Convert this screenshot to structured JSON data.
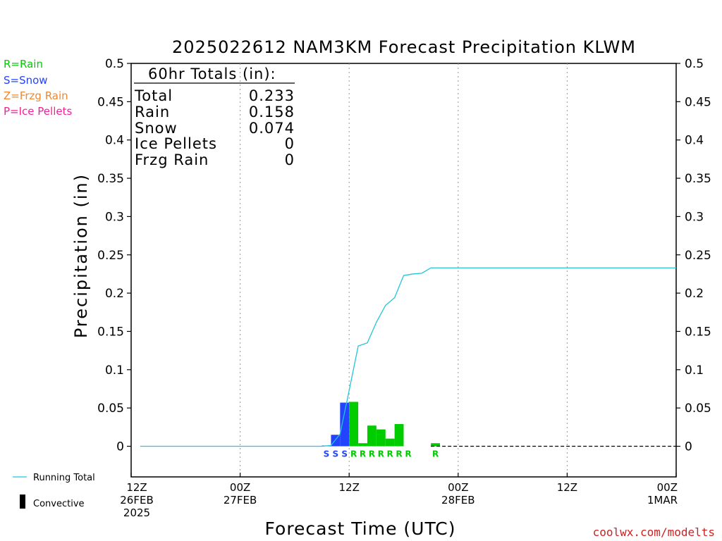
{
  "chart_data": {
    "type": "bar",
    "title": "2025022612 NAM3KM Forecast Precipitation KLWM",
    "xlabel": "Forecast Time (UTC)",
    "ylabel": "Precipitation (in)",
    "ylim": [
      -0.04,
      0.5
    ],
    "yticks": [
      "0.5",
      "0.45",
      "0.4",
      "0.35",
      "0.3",
      "0.25",
      "0.2",
      "0.15",
      "0.1",
      "0.05",
      "0"
    ],
    "ytick_values": [
      0.5,
      0.45,
      0.4,
      0.35,
      0.3,
      0.25,
      0.2,
      0.15,
      0.1,
      0.05,
      0
    ],
    "xlim_hours": [
      0,
      60
    ],
    "xticks": [
      {
        "hour": 0,
        "lines": [
          "12Z",
          "26FEB",
          "2025"
        ]
      },
      {
        "hour": 12,
        "lines": [
          "00Z",
          "27FEB"
        ]
      },
      {
        "hour": 24,
        "lines": [
          "12Z",
          ""
        ]
      },
      {
        "hour": 36,
        "lines": [
          "00Z",
          "28FEB"
        ]
      },
      {
        "hour": 48,
        "lines": [
          "12Z",
          ""
        ]
      },
      {
        "hour": 60,
        "lines": [
          "00Z",
          "1MAR"
        ]
      }
    ],
    "grid_hours": [
      12,
      24,
      36,
      48
    ],
    "bars": [
      {
        "hour": 22,
        "value": 0.001,
        "type": "S"
      },
      {
        "hour": 23,
        "value": 0.015,
        "type": "S"
      },
      {
        "hour": 24,
        "value": 0.057,
        "type": "S"
      },
      {
        "hour": 25,
        "value": 0.058,
        "type": "R"
      },
      {
        "hour": 26,
        "value": 0.004,
        "type": "R"
      },
      {
        "hour": 27,
        "value": 0.027,
        "type": "R"
      },
      {
        "hour": 28,
        "value": 0.022,
        "type": "R"
      },
      {
        "hour": 29,
        "value": 0.01,
        "type": "R"
      },
      {
        "hour": 30,
        "value": 0.029,
        "type": "R"
      },
      {
        "hour": 31,
        "value": 0.0,
        "type": "R"
      },
      {
        "hour": 33,
        "value": 0.0,
        "type": ""
      },
      {
        "hour": 34,
        "value": 0.004,
        "type": "R"
      }
    ],
    "type_labels": [
      {
        "hour": 22,
        "text": "S"
      },
      {
        "hour": 23,
        "text": "S"
      },
      {
        "hour": 24,
        "text": "S"
      },
      {
        "hour": 25,
        "text": "R"
      },
      {
        "hour": 26,
        "text": "R"
      },
      {
        "hour": 27,
        "text": "R"
      },
      {
        "hour": 28,
        "text": "R"
      },
      {
        "hour": 29,
        "text": "R"
      },
      {
        "hour": 30,
        "text": "R"
      },
      {
        "hour": 31,
        "text": "R"
      },
      {
        "hour": 34,
        "text": "R"
      }
    ],
    "running_total": {
      "name": "Running Total",
      "x": [
        1,
        21,
        22,
        23,
        24,
        25,
        26,
        27,
        28,
        29,
        30,
        31,
        32,
        33,
        60
      ],
      "y": [
        0,
        0,
        0.001,
        0.016,
        0.073,
        0.131,
        0.135,
        0.162,
        0.184,
        0.194,
        0.223,
        0.225,
        0.226,
        0.233,
        0.233
      ]
    },
    "colors": {
      "rain": "#00cc00",
      "snow": "#2244ff",
      "frzg_rain": "#ee8833",
      "ice_pellets": "#ee2299",
      "running_total": "#22c6d6",
      "grid": "#999999"
    }
  },
  "totals": {
    "header": "60hr Totals (in):",
    "rows": [
      {
        "label": "Total",
        "value": "0.233"
      },
      {
        "label": "Rain",
        "value": "0.158"
      },
      {
        "label": "Snow",
        "value": "0.074"
      },
      {
        "label": "Ice Pellets",
        "value": "0"
      },
      {
        "label": "Frzg Rain",
        "value": "0"
      }
    ]
  },
  "type_legend": [
    {
      "text": "R=Rain",
      "color": "#00cc00"
    },
    {
      "text": "S=Snow",
      "color": "#2244ff"
    },
    {
      "text": "Z=Frzg Rain",
      "color": "#ee8833"
    },
    {
      "text": "P=Ice Pellets",
      "color": "#ee2299"
    }
  ],
  "line_legend": {
    "running_total": "Running Total",
    "convective": "Convective"
  },
  "credit": "coolwx.com/modelts"
}
